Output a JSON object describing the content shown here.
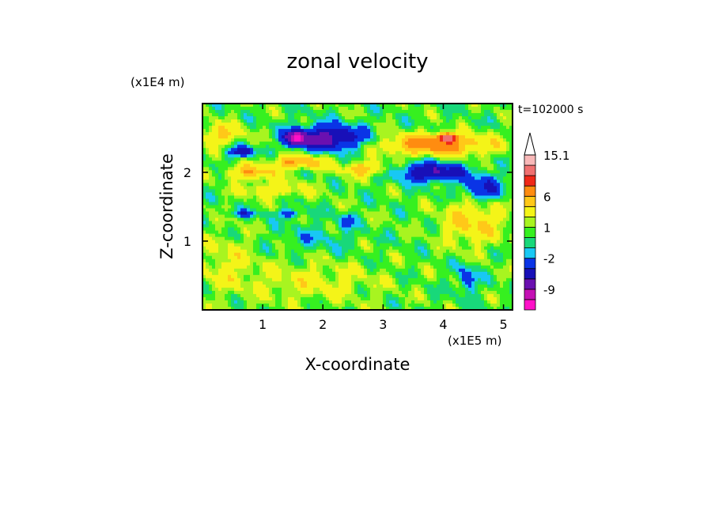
{
  "chart_data": {
    "type": "heatmap",
    "title": "zonal velocity",
    "xlabel": "X-coordinate",
    "ylabel": "Z-coordinate",
    "x_unit": "(x1E5 m)",
    "y_unit": "(x1E4 m)",
    "time_label": "t=102000 s",
    "xlim": [
      0,
      5.15
    ],
    "ylim": [
      0,
      3.0
    ],
    "x_ticks": [
      1,
      2,
      3,
      4,
      5
    ],
    "y_ticks": [
      1,
      2
    ],
    "colorbar": {
      "levels": [
        -15,
        -12,
        -9,
        -6,
        -4,
        -2,
        -1,
        0,
        1,
        2,
        4,
        6,
        9,
        12,
        15.1
      ],
      "labels": [
        "15.1",
        "6",
        "1",
        "-2",
        "-9"
      ],
      "label_values": [
        15.1,
        6,
        1,
        -2,
        -9
      ],
      "colors": [
        "#ff10c8",
        "#c410b4",
        "#6a10b0",
        "#1810b8",
        "#0a34e6",
        "#18c8f4",
        "#18d87a",
        "#36f020",
        "#a8f420",
        "#f4f418",
        "#ffc818",
        "#ff8c10",
        "#f02818",
        "#f07070",
        "#f8b8b8"
      ],
      "extend_max": true,
      "extend_max_color": "#ffffff"
    },
    "features": [
      {
        "kind": "jet",
        "value": -8,
        "x": 2.1,
        "z": 2.5,
        "sx": 0.6,
        "sz": 0.18
      },
      {
        "kind": "jet",
        "value": -11,
        "x": 1.55,
        "z": 2.5,
        "sx": 0.15,
        "sz": 0.1
      },
      {
        "kind": "jet",
        "value": -6,
        "x": 0.65,
        "z": 2.3,
        "sx": 0.22,
        "sz": 0.08
      },
      {
        "kind": "jet",
        "value": -7,
        "x": 3.8,
        "z": 2.0,
        "sx": 0.55,
        "sz": 0.14
      },
      {
        "kind": "jet",
        "value": -5,
        "x": 4.65,
        "z": 1.75,
        "sx": 0.35,
        "sz": 0.2
      },
      {
        "kind": "jet",
        "value": -4,
        "x": 2.4,
        "z": 1.3,
        "sx": 0.12,
        "sz": 0.1
      },
      {
        "kind": "jet",
        "value": -4,
        "x": 1.45,
        "z": 1.4,
        "sx": 0.2,
        "sz": 0.06
      },
      {
        "kind": "jet",
        "value": -3,
        "x": 0.7,
        "z": 1.4,
        "sx": 0.3,
        "sz": 0.05
      },
      {
        "kind": "jet",
        "value": -4,
        "x": 4.4,
        "z": 0.45,
        "sx": 0.15,
        "sz": 0.2
      },
      {
        "kind": "jet",
        "value": 7,
        "x": 3.9,
        "z": 2.4,
        "sx": 0.9,
        "sz": 0.15
      },
      {
        "kind": "jet",
        "value": 12,
        "x": 4.05,
        "z": 2.5,
        "sx": 0.15,
        "sz": 0.06
      },
      {
        "kind": "jet",
        "value": 6,
        "x": 1.6,
        "z": 2.15,
        "sx": 0.45,
        "sz": 0.1
      },
      {
        "kind": "jet",
        "value": 5,
        "x": 0.8,
        "z": 2.0,
        "sx": 0.4,
        "sz": 0.1
      },
      {
        "kind": "jet",
        "value": 5,
        "x": 2.7,
        "z": 2.05,
        "sx": 0.35,
        "sz": 0.1
      },
      {
        "kind": "jet",
        "value": 4,
        "x": 4.5,
        "z": 1.3,
        "sx": 0.5,
        "sz": 0.35
      },
      {
        "kind": "jet",
        "value": 4,
        "x": 0.3,
        "z": 2.55,
        "sx": 0.35,
        "sz": 0.15
      },
      {
        "kind": "jet",
        "value": 3,
        "x": 1.2,
        "z": 1.75,
        "sx": 0.6,
        "sz": 0.12
      },
      {
        "kind": "jet",
        "value": -1.5,
        "x": 1.9,
        "z": 1.05,
        "sx": 0.6,
        "sz": 0.2
      },
      {
        "kind": "jet",
        "value": 2,
        "x": 1.8,
        "z": 0.4,
        "sx": 1.2,
        "sz": 0.3
      },
      {
        "kind": "jet",
        "value": 2,
        "x": 0.4,
        "z": 0.7,
        "sx": 0.45,
        "sz": 0.4
      }
    ]
  }
}
